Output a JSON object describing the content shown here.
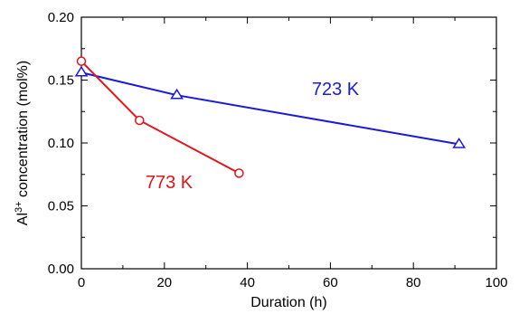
{
  "chart_data": {
    "type": "line",
    "xlabel": "Duration (h)",
    "ylabel_main": "Al",
    "ylabel_sup": "3+",
    "ylabel_rest": " concentration (mol%)",
    "xlim": [
      0,
      100
    ],
    "ylim": [
      0,
      0.2
    ],
    "x_ticks": [
      0,
      20,
      40,
      60,
      80,
      100
    ],
    "x_tick_labels": [
      "0",
      "20",
      "40",
      "60",
      "80",
      "100"
    ],
    "y_ticks": [
      0,
      0.05,
      0.1,
      0.15,
      0.2
    ],
    "y_tick_labels": [
      "0.00",
      "0.05",
      "0.10",
      "0.15",
      "0.20"
    ],
    "grid": false,
    "series": [
      {
        "name": "723 K",
        "color": "#1a1adb",
        "marker": "triangle-open",
        "x": [
          0,
          23,
          91
        ],
        "y": [
          0.156,
          0.138,
          0.099
        ]
      },
      {
        "name": "773 K",
        "color": "#e3141b",
        "marker": "circle-open",
        "x": [
          0,
          14,
          38
        ],
        "y": [
          0.165,
          0.118,
          0.076
        ]
      }
    ]
  }
}
